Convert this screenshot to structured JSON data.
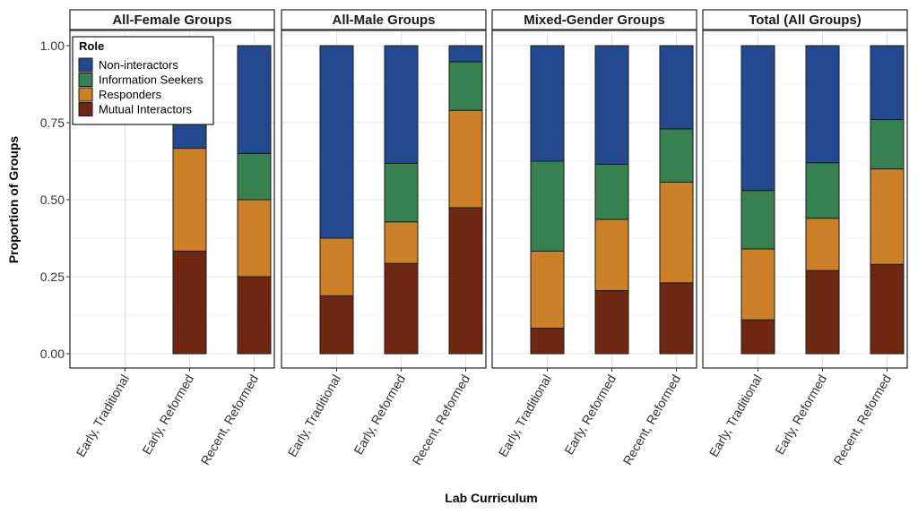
{
  "chart_data": {
    "type": "bar",
    "stacked": true,
    "ylabel": "Proportion of Groups",
    "xlabel": "Lab Curriculum",
    "ylim": [
      0,
      1
    ],
    "yticks": [
      "0.00",
      "0.25",
      "0.50",
      "0.75",
      "1.00"
    ],
    "grid": true,
    "categories": [
      "Early, Traditional",
      "Early, Reformed",
      "Recent, Reformed"
    ],
    "legend": {
      "title": "Role",
      "placement": "top-left",
      "entries": [
        {
          "label": "Non-interactors",
          "color": "#23498f"
        },
        {
          "label": "Information Seekers",
          "color": "#378150"
        },
        {
          "label": "Responders",
          "color": "#cc8027"
        },
        {
          "label": "Mutual Interactors",
          "color": "#6e2812"
        }
      ]
    },
    "stack_order_bottom_to_top": [
      "Mutual Interactors",
      "Responders",
      "Information Seekers",
      "Non-interactors"
    ],
    "panels": [
      {
        "title": "All-Female Groups",
        "bars": [
          null,
          {
            "Mutual Interactors": 0.333,
            "Responders": 0.334,
            "Information Seekers": 0.0,
            "Non-interactors": 0.333
          },
          {
            "Mutual Interactors": 0.25,
            "Responders": 0.25,
            "Information Seekers": 0.15,
            "Non-interactors": 0.35
          }
        ]
      },
      {
        "title": "All-Male Groups",
        "bars": [
          {
            "Mutual Interactors": 0.188,
            "Responders": 0.187,
            "Information Seekers": 0.0,
            "Non-interactors": 0.625
          },
          {
            "Mutual Interactors": 0.293,
            "Responders": 0.135,
            "Information Seekers": 0.19,
            "Non-interactors": 0.382
          },
          {
            "Mutual Interactors": 0.474,
            "Responders": 0.316,
            "Information Seekers": 0.158,
            "Non-interactors": 0.052
          }
        ]
      },
      {
        "title": "Mixed-Gender Groups",
        "bars": [
          {
            "Mutual Interactors": 0.083,
            "Responders": 0.25,
            "Information Seekers": 0.292,
            "Non-interactors": 0.375
          },
          {
            "Mutual Interactors": 0.205,
            "Responders": 0.231,
            "Information Seekers": 0.179,
            "Non-interactors": 0.385
          },
          {
            "Mutual Interactors": 0.23,
            "Responders": 0.327,
            "Information Seekers": 0.173,
            "Non-interactors": 0.27
          }
        ]
      },
      {
        "title": "Total (All Groups)",
        "bars": [
          {
            "Mutual Interactors": 0.11,
            "Responders": 0.23,
            "Information Seekers": 0.19,
            "Non-interactors": 0.47
          },
          {
            "Mutual Interactors": 0.27,
            "Responders": 0.17,
            "Information Seekers": 0.18,
            "Non-interactors": 0.38
          },
          {
            "Mutual Interactors": 0.29,
            "Responders": 0.31,
            "Information Seekers": 0.16,
            "Non-interactors": 0.24
          }
        ]
      }
    ]
  }
}
